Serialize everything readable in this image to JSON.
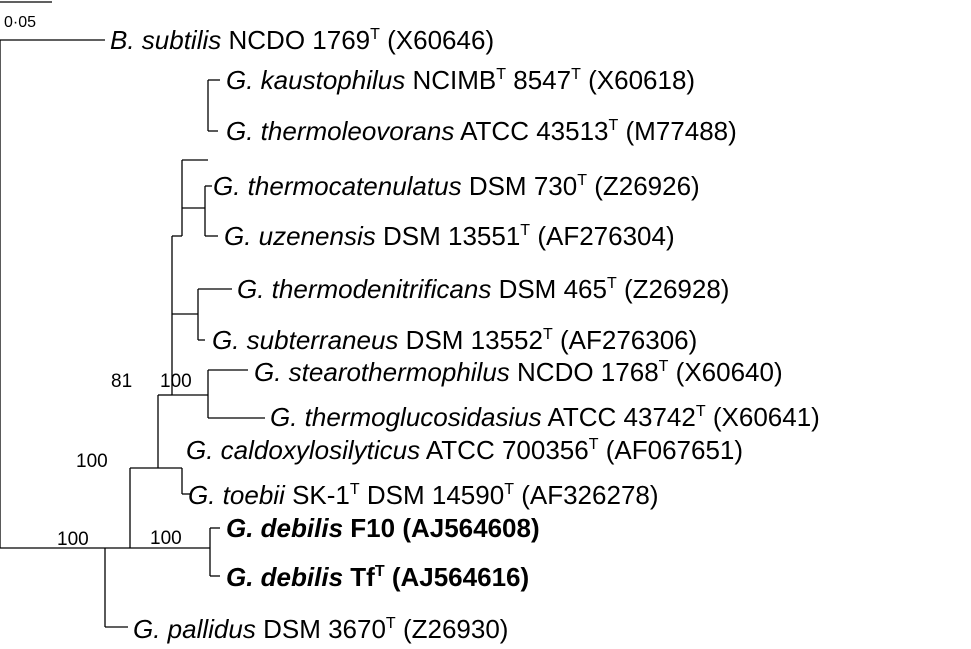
{
  "scale_bar": {
    "label": "0·05"
  },
  "taxa": [
    {
      "id": "bsub",
      "genus": "B. subtilis",
      "strain": "NCDO 1769",
      "type": true,
      "accession": "(X60646)",
      "bold": false
    },
    {
      "id": "gkau",
      "genus": "G. kaustophilus",
      "strain": "NCIMB",
      "strain_sup": "T",
      "strain2": "8547",
      "type": true,
      "accession": "(X60618)",
      "bold": false
    },
    {
      "id": "gthl",
      "genus": "G. thermoleovorans",
      "strain": "ATCC 43513",
      "type": true,
      "accession": "(M77488)",
      "bold": false
    },
    {
      "id": "gthc",
      "genus": "G. thermocatenulatus",
      "strain": "DSM 730",
      "type": true,
      "accession": "(Z26926)",
      "bold": false
    },
    {
      "id": "guze",
      "genus": "G. uzenensis",
      "strain": "DSM 13551",
      "type": true,
      "accession": "(AF276304)",
      "bold": false
    },
    {
      "id": "gthd",
      "genus": "G. thermodenitrificans",
      "strain": "DSM 465",
      "type": true,
      "accession": "(Z26928)",
      "bold": false
    },
    {
      "id": "gsubt",
      "genus": "G. subterraneus",
      "strain": "DSM 13552",
      "type": true,
      "accession": "(AF276306)",
      "bold": false
    },
    {
      "id": "gste",
      "genus": "G. stearothermophilus",
      "strain": "NCDO 1768",
      "type": true,
      "accession": "(X60640)",
      "bold": false
    },
    {
      "id": "gthg",
      "genus": "G. thermoglucosidasius",
      "strain": "ATCC 43742",
      "type": true,
      "accession": "(X60641)",
      "bold": false
    },
    {
      "id": "gcal",
      "genus": "G. caldoxylosilyticus",
      "strain": "ATCC 700356",
      "type": true,
      "accession": "(AF067651)",
      "bold": false
    },
    {
      "id": "gtoe",
      "genus": "G. toebii",
      "strain": "SK-1",
      "strain_sup": "T",
      "strain2": "DSM 14590",
      "type": true,
      "accession": "(AF326278)",
      "bold": false
    },
    {
      "id": "gdeb1",
      "genus": "G. debilis",
      "strain": "F10",
      "type": false,
      "accession": "(AJ564608)",
      "bold": true
    },
    {
      "id": "gdeb2",
      "genus": "G. debilis",
      "strain": "Tf",
      "type": true,
      "accession": "(AJ564616)",
      "bold": true
    },
    {
      "id": "gpal",
      "genus": "G. pallidus",
      "strain": "DSM 3670",
      "type": true,
      "accession": "(Z26930)",
      "bold": false
    }
  ],
  "bootstrap": [
    {
      "id": "b81",
      "value": "81"
    },
    {
      "id": "b100_ste",
      "value": "100"
    },
    {
      "id": "b100_a",
      "value": "100"
    },
    {
      "id": "b100_deb",
      "value": "100"
    },
    {
      "id": "b100_root",
      "value": "100"
    }
  ],
  "type_marker": "T"
}
